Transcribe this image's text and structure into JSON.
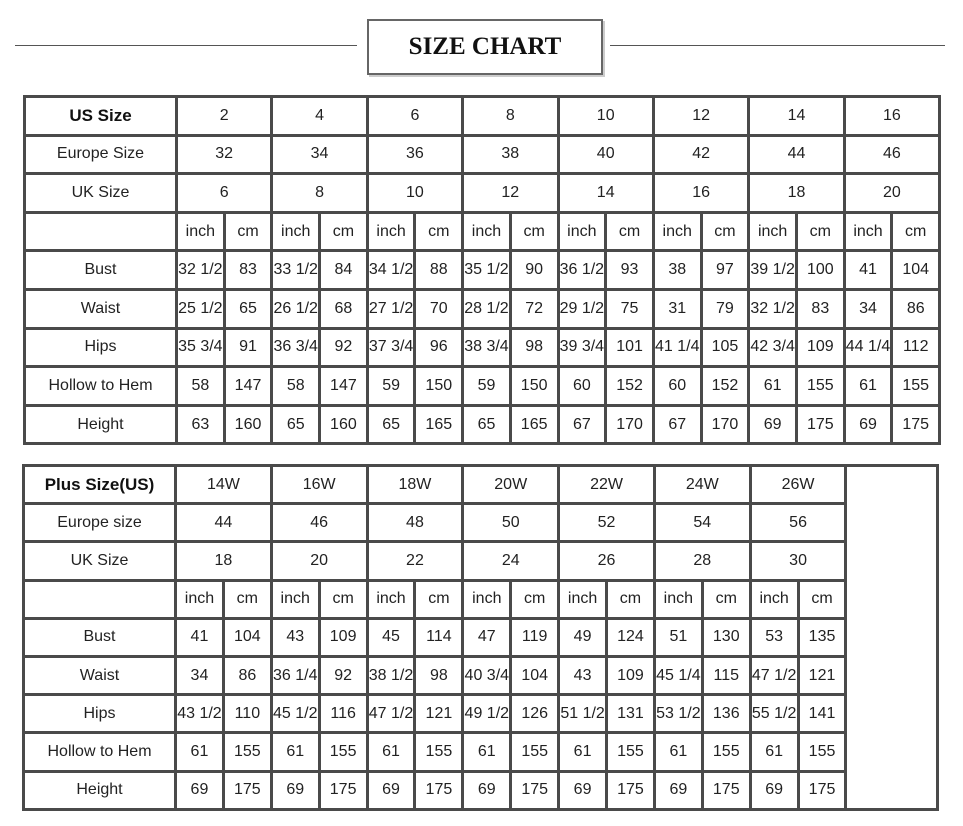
{
  "title": "SIZE CHART",
  "standard": {
    "header_label": "US Size",
    "sizes": [
      "2",
      "4",
      "6",
      "8",
      "10",
      "12",
      "14",
      "16"
    ],
    "europe_label": "Europe Size",
    "europe": [
      "32",
      "34",
      "36",
      "38",
      "40",
      "42",
      "44",
      "46"
    ],
    "uk_label": "UK Size",
    "uk": [
      "6",
      "8",
      "10",
      "12",
      "14",
      "16",
      "18",
      "20"
    ],
    "unit_inch": "inch",
    "unit_cm": "cm",
    "rows": [
      {
        "label": "Bust",
        "values": [
          "32 1/2",
          "83",
          "33 1/2",
          "84",
          "34 1/2",
          "88",
          "35 1/2",
          "90",
          "36 1/2",
          "93",
          "38",
          "97",
          "39 1/2",
          "100",
          "41",
          "104"
        ]
      },
      {
        "label": "Waist",
        "values": [
          "25 1/2",
          "65",
          "26 1/2",
          "68",
          "27 1/2",
          "70",
          "28 1/2",
          "72",
          "29 1/2",
          "75",
          "31",
          "79",
          "32 1/2",
          "83",
          "34",
          "86"
        ]
      },
      {
        "label": "Hips",
        "values": [
          "35 3/4",
          "91",
          "36 3/4",
          "92",
          "37 3/4",
          "96",
          "38 3/4",
          "98",
          "39 3/4",
          "101",
          "41 1/4",
          "105",
          "42 3/4",
          "109",
          "44 1/4",
          "112"
        ]
      },
      {
        "label": "Hollow to Hem",
        "values": [
          "58",
          "147",
          "58",
          "147",
          "59",
          "150",
          "59",
          "150",
          "60",
          "152",
          "60",
          "152",
          "61",
          "155",
          "61",
          "155"
        ]
      },
      {
        "label": "Height",
        "values": [
          "63",
          "160",
          "65",
          "160",
          "65",
          "165",
          "65",
          "165",
          "67",
          "170",
          "67",
          "170",
          "69",
          "175",
          "69",
          "175"
        ]
      }
    ]
  },
  "plus": {
    "header_label": "Plus Size(US)",
    "sizes": [
      "14W",
      "16W",
      "18W",
      "20W",
      "22W",
      "24W",
      "26W"
    ],
    "europe_label": "Europe size",
    "europe": [
      "44",
      "46",
      "48",
      "50",
      "52",
      "54",
      "56"
    ],
    "uk_label": "UK Size",
    "uk": [
      "18",
      "20",
      "22",
      "24",
      "26",
      "28",
      "30"
    ],
    "unit_inch": "inch",
    "unit_cm": "cm",
    "rows": [
      {
        "label": "Bust",
        "values": [
          "41",
          "104",
          "43",
          "109",
          "45",
          "114",
          "47",
          "119",
          "49",
          "124",
          "51",
          "130",
          "53",
          "135"
        ]
      },
      {
        "label": "Waist",
        "values": [
          "34",
          "86",
          "36 1/4",
          "92",
          "38 1/2",
          "98",
          "40 3/4",
          "104",
          "43",
          "109",
          "45 1/4",
          "115",
          "47 1/2",
          "121"
        ]
      },
      {
        "label": "Hips",
        "values": [
          "43 1/2",
          "110",
          "45 1/2",
          "116",
          "47 1/2",
          "121",
          "49 1/2",
          "126",
          "51 1/2",
          "131",
          "53 1/2",
          "136",
          "55 1/2",
          "141"
        ]
      },
      {
        "label": "Hollow to Hem",
        "values": [
          "61",
          "155",
          "61",
          "155",
          "61",
          "155",
          "61",
          "155",
          "61",
          "155",
          "61",
          "155",
          "61",
          "155"
        ]
      },
      {
        "label": "Height",
        "values": [
          "69",
          "175",
          "69",
          "175",
          "69",
          "175",
          "69",
          "175",
          "69",
          "175",
          "69",
          "175",
          "69",
          "175"
        ]
      }
    ]
  }
}
